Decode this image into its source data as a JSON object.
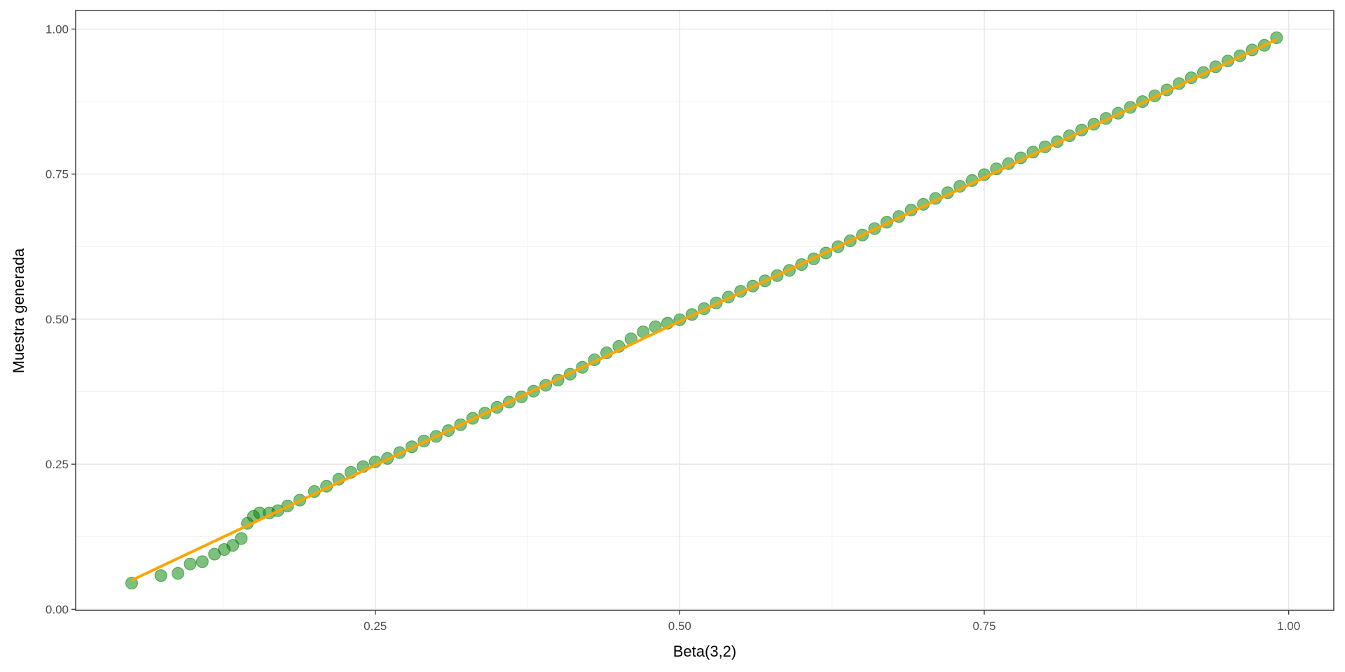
{
  "chart_data": {
    "type": "scatter",
    "xlabel": "Beta(3,2)",
    "ylabel": "Muestra generada",
    "color": "green",
    "x": [
      0.05,
      0.074,
      0.088,
      0.098,
      0.108,
      0.118,
      0.126,
      0.133,
      0.14,
      0.145,
      0.15,
      0.155,
      0.163,
      0.17,
      0.178,
      0.188,
      0.2,
      0.21,
      0.22,
      0.23,
      0.24,
      0.25,
      0.26,
      0.27,
      0.28,
      0.29,
      0.3,
      0.31,
      0.32,
      0.33,
      0.34,
      0.35,
      0.36,
      0.37,
      0.38,
      0.39,
      0.4,
      0.41,
      0.42,
      0.43,
      0.44,
      0.45,
      0.46,
      0.47,
      0.48,
      0.49,
      0.5,
      0.51,
      0.52,
      0.53,
      0.54,
      0.55,
      0.56,
      0.57,
      0.58,
      0.59,
      0.6,
      0.61,
      0.62,
      0.63,
      0.64,
      0.65,
      0.66,
      0.67,
      0.68,
      0.69,
      0.7,
      0.71,
      0.72,
      0.73,
      0.74,
      0.75,
      0.76,
      0.77,
      0.78,
      0.79,
      0.8,
      0.81,
      0.82,
      0.83,
      0.84,
      0.85,
      0.86,
      0.87,
      0.88,
      0.89,
      0.9,
      0.91,
      0.92,
      0.93,
      0.94,
      0.95,
      0.96,
      0.97,
      0.98,
      0.99
    ],
    "y": [
      0.045,
      0.058,
      0.062,
      0.078,
      0.082,
      0.095,
      0.103,
      0.11,
      0.122,
      0.148,
      0.16,
      0.166,
      0.166,
      0.17,
      0.178,
      0.188,
      0.203,
      0.212,
      0.224,
      0.236,
      0.246,
      0.254,
      0.26,
      0.27,
      0.28,
      0.29,
      0.298,
      0.308,
      0.318,
      0.329,
      0.338,
      0.348,
      0.357,
      0.366,
      0.376,
      0.386,
      0.395,
      0.405,
      0.417,
      0.43,
      0.442,
      0.453,
      0.466,
      0.478,
      0.487,
      0.493,
      0.499,
      0.508,
      0.518,
      0.528,
      0.538,
      0.548,
      0.557,
      0.566,
      0.575,
      0.584,
      0.594,
      0.604,
      0.614,
      0.625,
      0.635,
      0.645,
      0.656,
      0.667,
      0.677,
      0.688,
      0.698,
      0.708,
      0.718,
      0.729,
      0.739,
      0.749,
      0.759,
      0.768,
      0.778,
      0.788,
      0.797,
      0.806,
      0.816,
      0.826,
      0.836,
      0.846,
      0.855,
      0.865,
      0.875,
      0.885,
      0.895,
      0.906,
      0.916,
      0.925,
      0.935,
      0.945,
      0.954,
      0.964,
      0.972,
      0.985
    ],
    "reference_line": {
      "color": "orange",
      "x": [
        0.05,
        0.99
      ],
      "y": [
        0.05,
        0.982
      ]
    },
    "xlim": [
      0.004,
      1.037
    ],
    "ylim": [
      -0.002,
      1.032
    ],
    "xticks": [
      0.25,
      {
        "value": 0.5,
        "label": "0.50"
      },
      0.75,
      {
        "value": 1,
        "label": "1.00"
      }
    ],
    "yticks": [
      {
        "value": 0,
        "label": "0.00"
      },
      0.25,
      {
        "value": 0.5,
        "label": "0.50"
      },
      0.75,
      {
        "value": 1,
        "label": "1.00"
      }
    ],
    "x_minor_grid": [
      0.125,
      0.375,
      0.625,
      0.875
    ],
    "y_minor_grid": [
      0.125,
      0.375,
      0.625,
      0.875
    ],
    "grid": true
  }
}
